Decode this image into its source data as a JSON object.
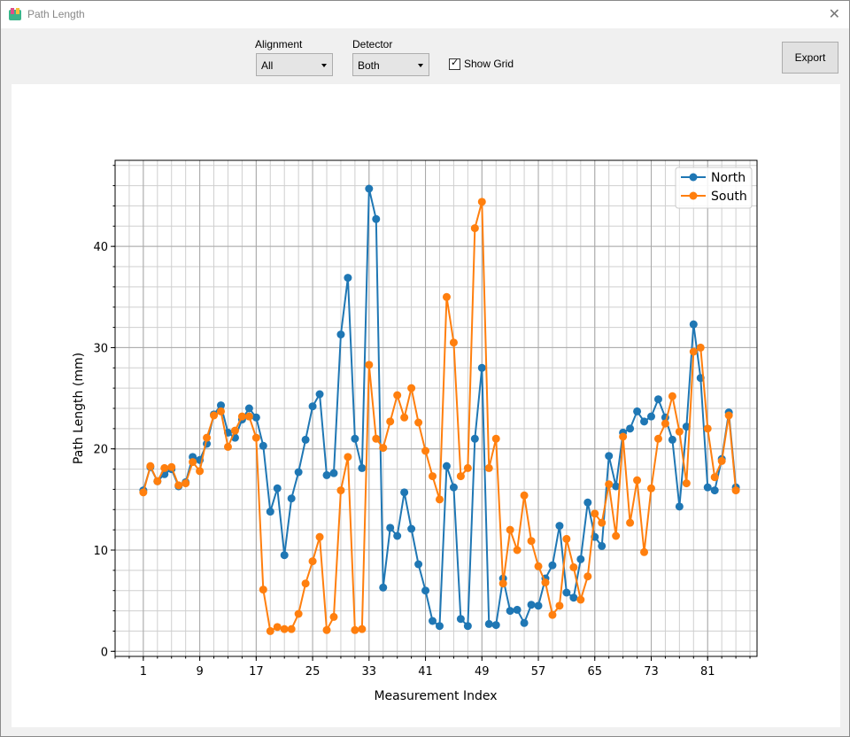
{
  "window": {
    "title": "Path Length"
  },
  "toolbar": {
    "alignment_label": "Alignment",
    "alignment_value": "All",
    "detector_label": "Detector",
    "detector_value": "Both",
    "show_grid_label": "Show Grid",
    "show_grid_checked": true,
    "export_label": "Export"
  },
  "chart_data": {
    "type": "line",
    "xlabel": "Measurement Index",
    "ylabel": "Path Length (mm)",
    "xlim": [
      -3,
      88
    ],
    "ylim": [
      -0.5,
      48.5
    ],
    "xticks": [
      1,
      9,
      17,
      25,
      33,
      41,
      49,
      57,
      65,
      73,
      81
    ],
    "yticks": [
      0,
      10,
      20,
      30,
      40
    ],
    "grid": true,
    "legend_position": "top-right",
    "colors": {
      "North": "#1f77b4",
      "South": "#ff7f0e"
    },
    "x": [
      1,
      2,
      3,
      4,
      5,
      6,
      7,
      8,
      9,
      10,
      11,
      12,
      13,
      14,
      15,
      16,
      17,
      18,
      19,
      20,
      21,
      22,
      23,
      24,
      25,
      26,
      27,
      28,
      29,
      30,
      31,
      32,
      33,
      34,
      35,
      36,
      37,
      38,
      39,
      40,
      41,
      42,
      43,
      44,
      45,
      46,
      47,
      48,
      49,
      50,
      51,
      52,
      53,
      54,
      55,
      56,
      57,
      58,
      59,
      60,
      61,
      62,
      63,
      64,
      65,
      66,
      67,
      68,
      69,
      70,
      71,
      72,
      73,
      74,
      75,
      76,
      77,
      78,
      79,
      80,
      81,
      82,
      83,
      84,
      85
    ],
    "series": [
      {
        "name": "North",
        "values": [
          15.9,
          18.2,
          16.8,
          17.5,
          18.0,
          16.3,
          16.7,
          19.2,
          18.9,
          20.5,
          23.4,
          24.3,
          21.6,
          21.1,
          22.9,
          24.0,
          23.1,
          20.3,
          13.8,
          16.1,
          9.5,
          15.1,
          17.7,
          20.9,
          24.2,
          25.4,
          17.4,
          17.6,
          31.3,
          36.9,
          21.0,
          18.1,
          45.7,
          42.7,
          6.3,
          12.2,
          11.4,
          15.7,
          12.1,
          8.6,
          6.0,
          3.0,
          2.5,
          18.3,
          16.2,
          3.2,
          2.5,
          21.0,
          28.0,
          2.7,
          2.6,
          7.2,
          4.0,
          4.1,
          2.8,
          4.6,
          4.5,
          7.2,
          8.5,
          12.4,
          5.8,
          5.3,
          9.1,
          14.7,
          11.3,
          10.4,
          19.3,
          16.3,
          21.6,
          22.0,
          23.7,
          22.7,
          23.2,
          24.9,
          23.1,
          20.9,
          14.3,
          22.2,
          32.3,
          27.0,
          16.2,
          15.9,
          19.0,
          23.6,
          16.2
        ]
      },
      {
        "name": "South",
        "values": [
          15.7,
          18.3,
          16.8,
          18.1,
          18.2,
          16.4,
          16.6,
          18.7,
          17.8,
          21.1,
          23.3,
          23.7,
          20.2,
          21.8,
          23.2,
          23.2,
          21.1,
          6.1,
          2.0,
          2.4,
          2.2,
          2.2,
          3.7,
          6.7,
          8.9,
          11.3,
          2.1,
          3.4,
          15.9,
          19.2,
          2.1,
          2.2,
          28.3,
          21.0,
          20.1,
          22.7,
          25.3,
          23.1,
          26.0,
          22.6,
          19.8,
          17.3,
          15.0,
          35.0,
          30.5,
          17.3,
          18.1,
          41.8,
          44.4,
          18.1,
          21.0,
          6.7,
          12.0,
          10.0,
          15.4,
          10.9,
          8.4,
          6.8,
          3.6,
          4.5,
          11.1,
          8.3,
          5.1,
          7.4,
          13.6,
          12.7,
          16.5,
          11.4,
          21.2,
          12.7,
          16.9,
          9.8,
          16.1,
          21.0,
          22.5,
          25.2,
          21.7,
          16.6,
          29.6,
          30.0,
          22.0,
          17.2,
          18.8,
          23.3,
          15.9
        ]
      }
    ]
  }
}
